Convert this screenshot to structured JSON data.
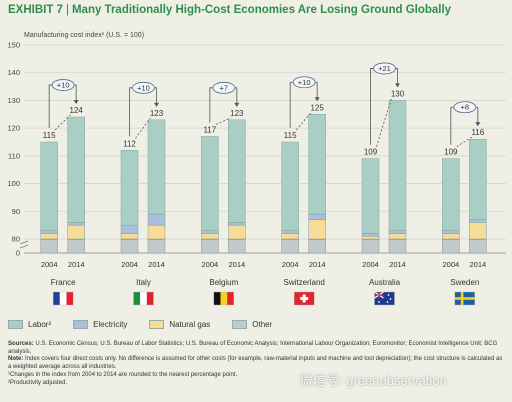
{
  "title": {
    "exhibit": "EXHIBIT 7",
    "text": "Many Traditionally High-Cost Economies Are Losing Ground Globally"
  },
  "chart_data": {
    "type": "bar",
    "stacked": true,
    "ylabel": "Manufacturing cost index¹ (U.S. = 100)",
    "yticks": [
      0,
      80,
      90,
      100,
      110,
      120,
      130,
      140,
      150
    ],
    "ylim_broken": [
      80,
      150
    ],
    "groups": [
      {
        "country": "France",
        "years": [
          "2004",
          "2014"
        ],
        "totals": [
          115,
          124
        ],
        "change": "+10",
        "bars": [
          {
            "labor": 80,
            "electricity": 1,
            "natural_gas": 2,
            "other": 32
          },
          {
            "labor": 85,
            "electricity": 1,
            "natural_gas": 5,
            "other": 33
          }
        ]
      },
      {
        "country": "Italy",
        "years": [
          "2004",
          "2014"
        ],
        "totals": [
          112,
          123
        ],
        "change": "+10",
        "bars": [
          {
            "labor": 80,
            "electricity": 3,
            "natural_gas": 2,
            "other": 27
          },
          {
            "labor": 87,
            "electricity": 4,
            "natural_gas": 5,
            "other": 27
          }
        ]
      },
      {
        "country": "Belgium",
        "years": [
          "2004",
          "2014"
        ],
        "totals": [
          117,
          123
        ],
        "change": "+7",
        "bars": [
          {
            "labor": 80,
            "electricity": 1,
            "natural_gas": 2,
            "other": 34
          },
          {
            "labor": 85,
            "electricity": 1,
            "natural_gas": 5,
            "other": 32
          }
        ]
      },
      {
        "country": "Switzerland",
        "years": [
          "2004",
          "2014"
        ],
        "totals": [
          115,
          125
        ],
        "change": "+10",
        "bars": [
          {
            "labor": 80,
            "electricity": 1,
            "natural_gas": 2,
            "other": 32
          },
          {
            "labor": 88,
            "electricity": 2,
            "natural_gas": 7,
            "other": 28
          }
        ]
      },
      {
        "country": "Australia",
        "years": [
          "2004",
          "2014"
        ],
        "totals": [
          109,
          130
        ],
        "change": "+21",
        "bars": [
          {
            "labor": 80,
            "electricity": 1,
            "natural_gas": 1,
            "other": 27
          },
          {
            "labor": 81,
            "electricity": 1,
            "natural_gas": 2,
            "other": 46
          }
        ]
      },
      {
        "country": "Sweden",
        "years": [
          "2004",
          "2014"
        ],
        "totals": [
          109,
          116
        ],
        "change": "+8",
        "bars": [
          {
            "labor": 80,
            "electricity": 1,
            "natural_gas": 2,
            "other": 26
          },
          {
            "labor": 85,
            "electricity": 1,
            "natural_gas": 6,
            "other": 24
          }
        ]
      }
    ],
    "legend": [
      {
        "key": "labor",
        "label": "Labor²",
        "color": "#a9cfc4"
      },
      {
        "key": "electricity",
        "label": "Electricity",
        "color": "#a9bfdc"
      },
      {
        "key": "natural_gas",
        "label": "Natural gas",
        "color": "#f7dc95"
      },
      {
        "key": "other",
        "label": "Other",
        "color": "#c2c9cc"
      }
    ]
  },
  "notes": {
    "sources_label": "Sources:",
    "sources": "U.S. Economic Census; U.S. Bureau of Labor Statistics; U.S. Bureau of Economic Analysis; International Labour Organization; Euromonitor; Economist Intelligence Unit; BCG analysis.",
    "note_label": "Note:",
    "note": "Index covers four direct costs only. No difference is assumed for other costs (for example, raw-material inputs and machine and tool depreciation); the cost structure is calculated as a weighted average across all industries.",
    "footnote1": "¹Changes in the index from 2004 to 2014 are rounded to the nearest percentage point.",
    "footnote2": "²Productivity adjusted."
  },
  "watermark": "微信号: greenobservation"
}
